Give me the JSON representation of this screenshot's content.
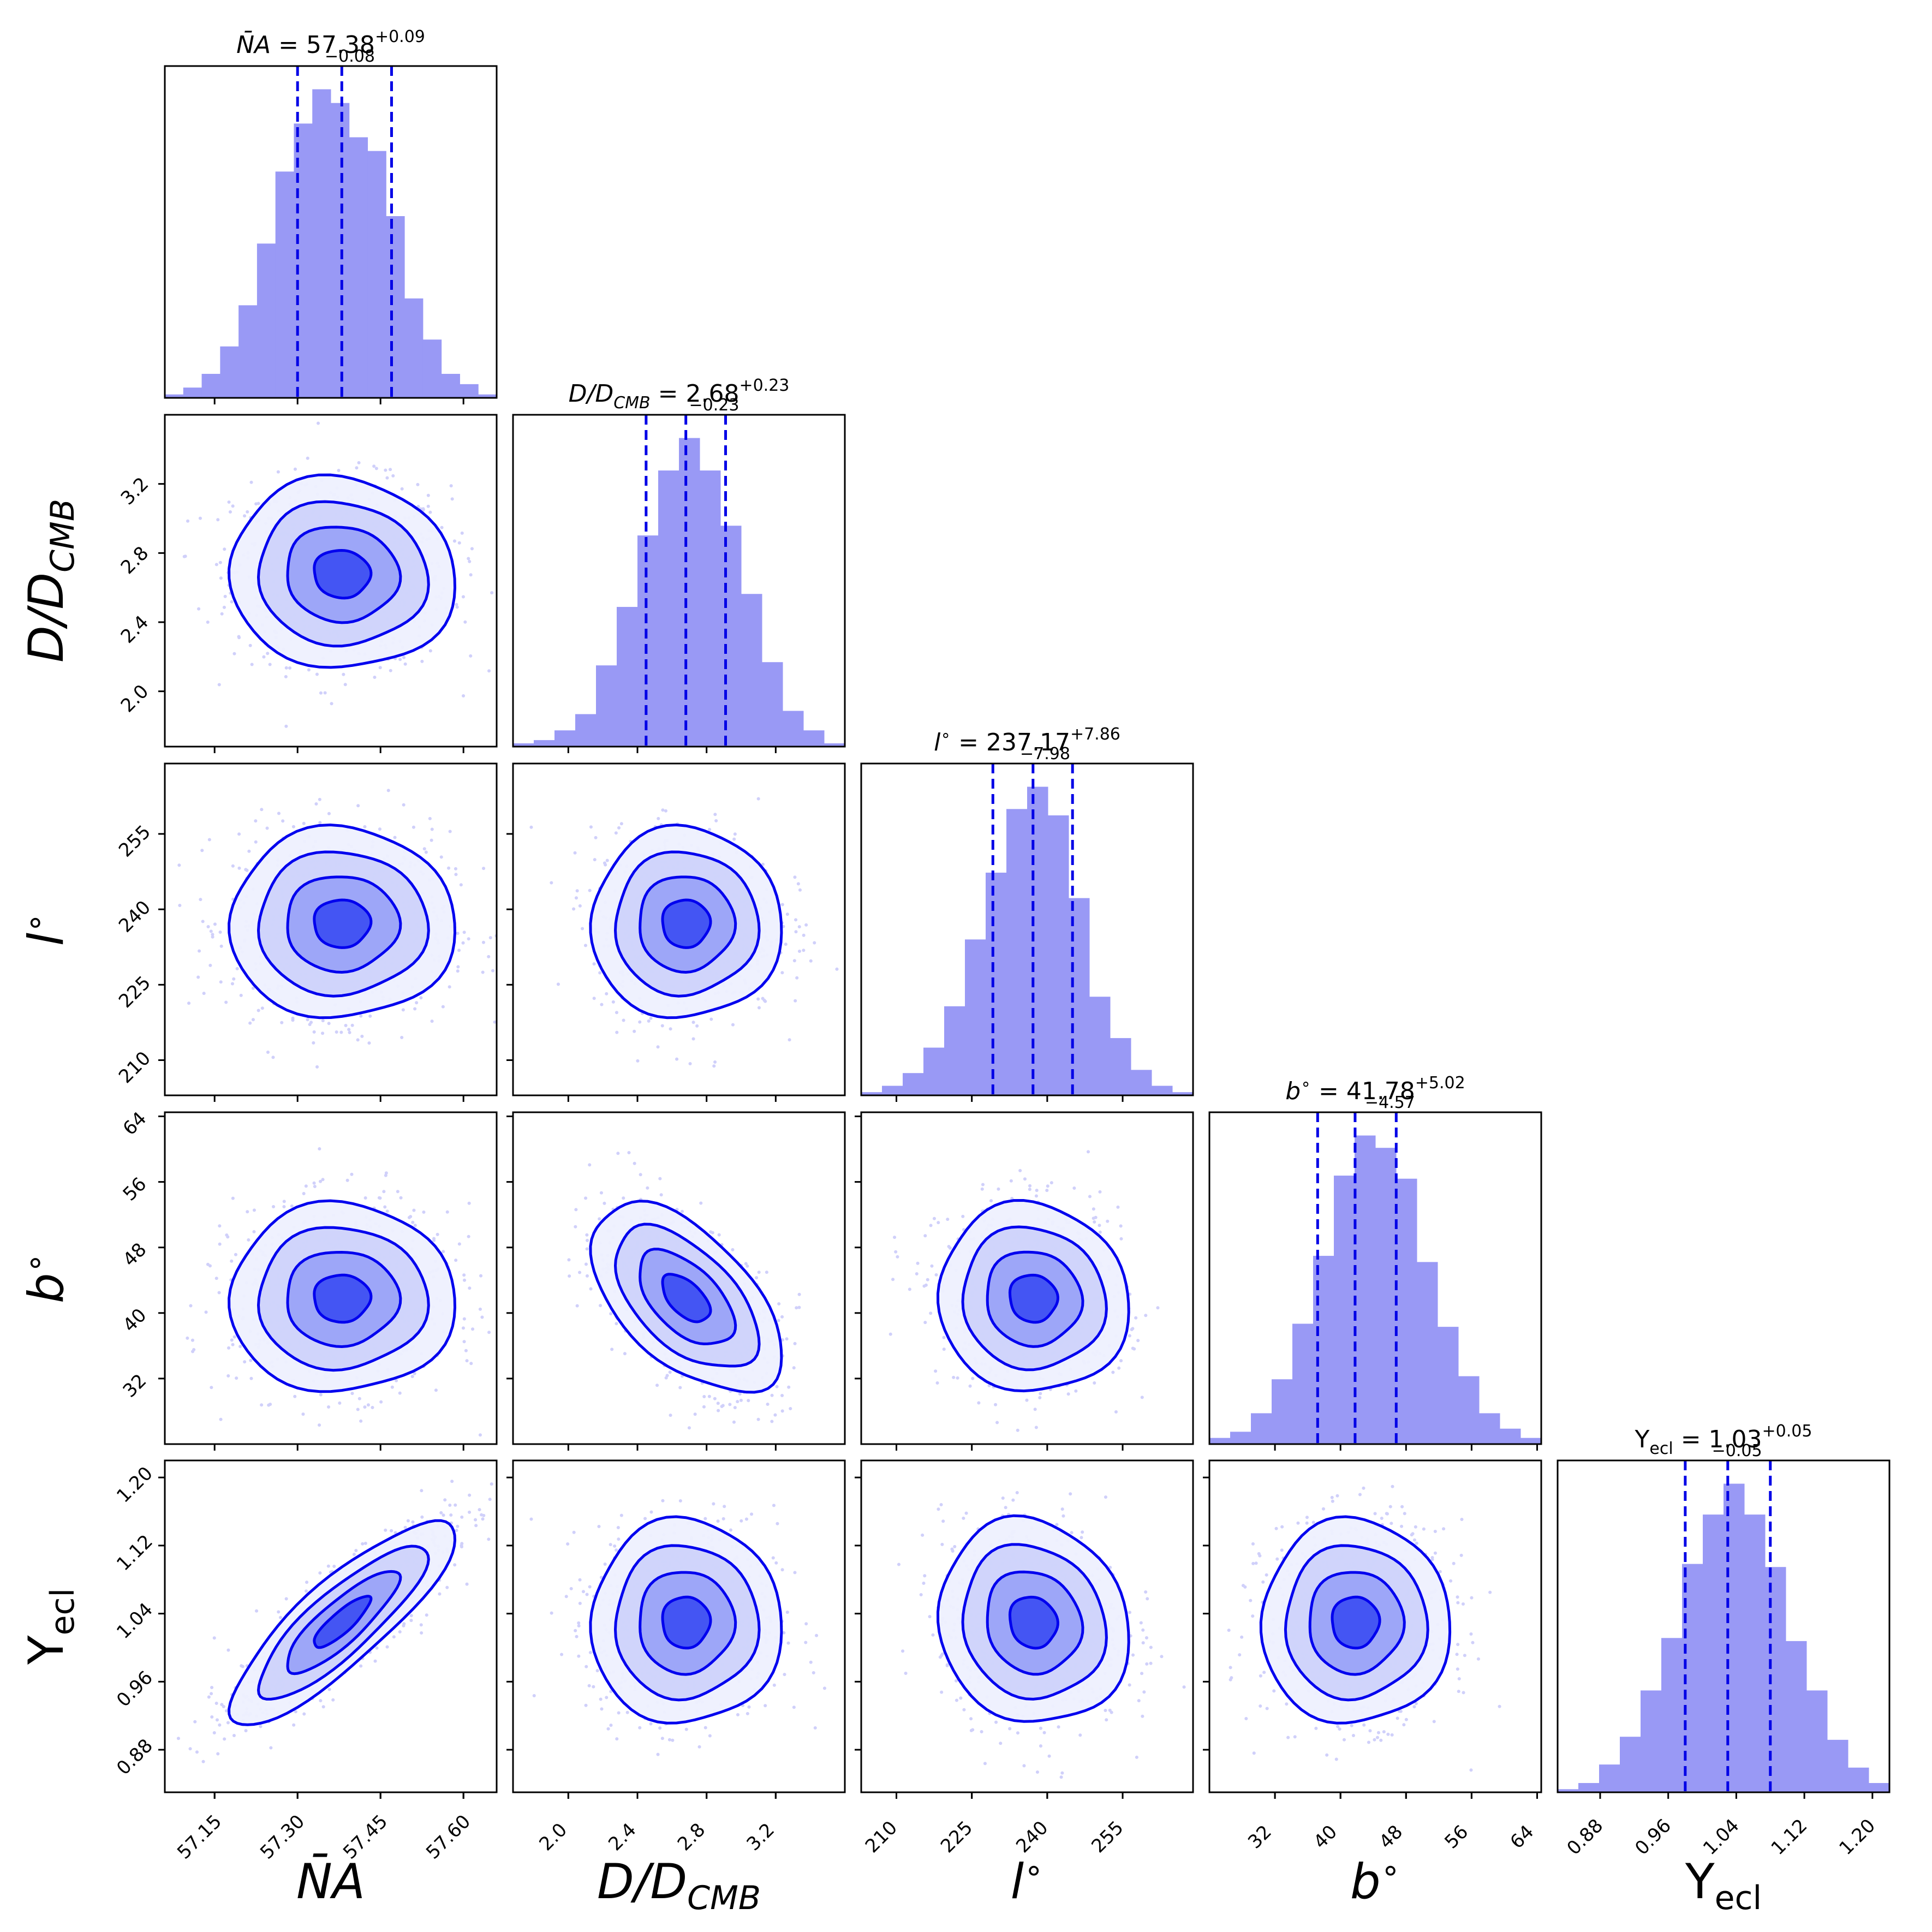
{
  "figure": {
    "type": "corner-plot",
    "colors": {
      "hist_fill": "#9999f5",
      "hist_edge": "#8080f0",
      "quantile_line": "#0000e6",
      "contour": "#0000ee",
      "points": "#5555ee",
      "density": "#0000ff",
      "frame": "#000000",
      "background": "#ffffff"
    }
  },
  "chart_data": {
    "type": "corner",
    "parameters": [
      {
        "key": "NA",
        "label_base": "N̄A",
        "label_sub": "",
        "label_style": "italic",
        "title_name": "N̄A",
        "title_sub": "",
        "median": "57.38",
        "plus": "+0.09",
        "minus": "−0.08",
        "median_value": 57.38,
        "q_low": 57.3,
        "q_high": 57.47,
        "range": [
          57.06,
          57.66
        ],
        "ticks": [
          57.15,
          57.3,
          57.45,
          57.6
        ],
        "tick_labels": [
          "57.15",
          "57.30",
          "57.45",
          "57.60"
        ],
        "hist": [
          0.01,
          0.03,
          0.07,
          0.15,
          0.27,
          0.45,
          0.66,
          0.8,
          0.9,
          0.86,
          0.76,
          0.72,
          0.53,
          0.29,
          0.17,
          0.07,
          0.04,
          0.01
        ]
      },
      {
        "key": "D",
        "label_base": "D/D",
        "label_sub": "CMB",
        "label_style": "italic",
        "title_name": "D/D",
        "title_sub": "CMB",
        "median": "2.68",
        "plus": "+0.23",
        "minus": "−0.23",
        "median_value": 2.68,
        "q_low": 2.45,
        "q_high": 2.91,
        "range": [
          1.68,
          3.6
        ],
        "ticks": [
          2.0,
          2.4,
          2.8,
          3.2
        ],
        "tick_labels": [
          "2.0",
          "2.4",
          "2.8",
          "3.2"
        ],
        "hist": [
          0.01,
          0.02,
          0.05,
          0.1,
          0.25,
          0.43,
          0.65,
          0.85,
          0.95,
          0.85,
          0.68,
          0.47,
          0.26,
          0.11,
          0.05,
          0.01
        ]
      },
      {
        "key": "l",
        "label_base": "l",
        "label_sub": "",
        "label_sup": "∘",
        "label_style": "italic",
        "title_name": "l",
        "title_sup": "∘",
        "title_sub": "",
        "median": "237.17",
        "plus": "+7.86",
        "minus": "−7.98",
        "median_value": 237.17,
        "q_low": 229.19,
        "q_high": 245.03,
        "range": [
          203.0,
          269.0
        ],
        "ticks": [
          210,
          225,
          240,
          255
        ],
        "tick_labels": [
          "210",
          "225",
          "240",
          "255"
        ],
        "hist": [
          0.01,
          0.03,
          0.07,
          0.15,
          0.28,
          0.49,
          0.7,
          0.9,
          0.97,
          0.88,
          0.62,
          0.31,
          0.18,
          0.08,
          0.03,
          0.01
        ]
      },
      {
        "key": "b",
        "label_base": "b",
        "label_sub": "",
        "label_sup": "∘",
        "label_style": "italic",
        "title_name": "b",
        "title_sup": "∘",
        "title_sub": "",
        "median": "41.78",
        "plus": "+5.02",
        "minus": "−4.57",
        "median_value": 41.78,
        "q_low": 37.21,
        "q_high": 46.8,
        "range": [
          24.0,
          64.5
        ],
        "ticks": [
          32,
          40,
          48,
          56,
          64
        ],
        "tick_labels": [
          "32",
          "40",
          "48",
          "56",
          "64"
        ],
        "hist": [
          0.02,
          0.04,
          0.1,
          0.21,
          0.39,
          0.61,
          0.87,
          1.0,
          0.96,
          0.86,
          0.59,
          0.38,
          0.22,
          0.1,
          0.05,
          0.02
        ]
      },
      {
        "key": "Y",
        "label_base": "Y",
        "label_sub": "ecl",
        "label_style": "normal",
        "title_name": "Y",
        "title_sub": "ecl",
        "median": "1.03",
        "plus": "+0.05",
        "minus": "−0.05",
        "median_value": 1.03,
        "q_low": 0.98,
        "q_high": 1.08,
        "range": [
          0.83,
          1.22
        ],
        "ticks": [
          0.88,
          0.96,
          1.04,
          1.12,
          1.2
        ],
        "tick_labels": [
          "0.88",
          "0.96",
          "1.04",
          "1.12",
          "1.20"
        ],
        "hist": [
          0.01,
          0.03,
          0.09,
          0.18,
          0.33,
          0.5,
          0.74,
          0.9,
          1.0,
          0.9,
          0.73,
          0.49,
          0.33,
          0.17,
          0.08,
          0.03
        ]
      }
    ],
    "pairs": [
      {
        "row": 1,
        "col": 0,
        "mean_x": 57.38,
        "mean_y": 2.68,
        "sd_x": 0.085,
        "sd_y": 0.23,
        "rho": -0.05
      },
      {
        "row": 2,
        "col": 0,
        "mean_x": 57.38,
        "mean_y": 237.2,
        "sd_x": 0.085,
        "sd_y": 7.9,
        "rho": 0.0
      },
      {
        "row": 2,
        "col": 1,
        "mean_x": 2.68,
        "mean_y": 237.2,
        "sd_x": 0.23,
        "sd_y": 7.9,
        "rho": 0.0
      },
      {
        "row": 3,
        "col": 0,
        "mean_x": 57.38,
        "mean_y": 41.8,
        "sd_x": 0.085,
        "sd_y": 4.8,
        "rho": 0.0
      },
      {
        "row": 3,
        "col": 1,
        "mean_x": 2.68,
        "mean_y": 41.8,
        "sd_x": 0.23,
        "sd_y": 4.8,
        "rho": -0.55
      },
      {
        "row": 3,
        "col": 2,
        "mean_x": 237.2,
        "mean_y": 41.8,
        "sd_x": 7.9,
        "sd_y": 4.8,
        "rho": -0.05
      },
      {
        "row": 4,
        "col": 0,
        "mean_x": 57.38,
        "mean_y": 1.03,
        "sd_x": 0.085,
        "sd_y": 0.05,
        "rho": 0.85
      },
      {
        "row": 4,
        "col": 1,
        "mean_x": 2.68,
        "mean_y": 1.03,
        "sd_x": 0.23,
        "sd_y": 0.05,
        "rho": 0.0
      },
      {
        "row": 4,
        "col": 2,
        "mean_x": 237.2,
        "mean_y": 1.03,
        "sd_x": 7.9,
        "sd_y": 0.05,
        "rho": -0.1
      },
      {
        "row": 4,
        "col": 3,
        "mean_x": 41.8,
        "mean_y": 1.03,
        "sd_x": 4.8,
        "sd_y": 0.05,
        "rho": 0.0
      }
    ],
    "contour_levels_sigma": [
      0.5,
      1.0,
      1.5,
      2.0
    ],
    "quantiles": [
      0.16,
      0.5,
      0.84
    ]
  }
}
